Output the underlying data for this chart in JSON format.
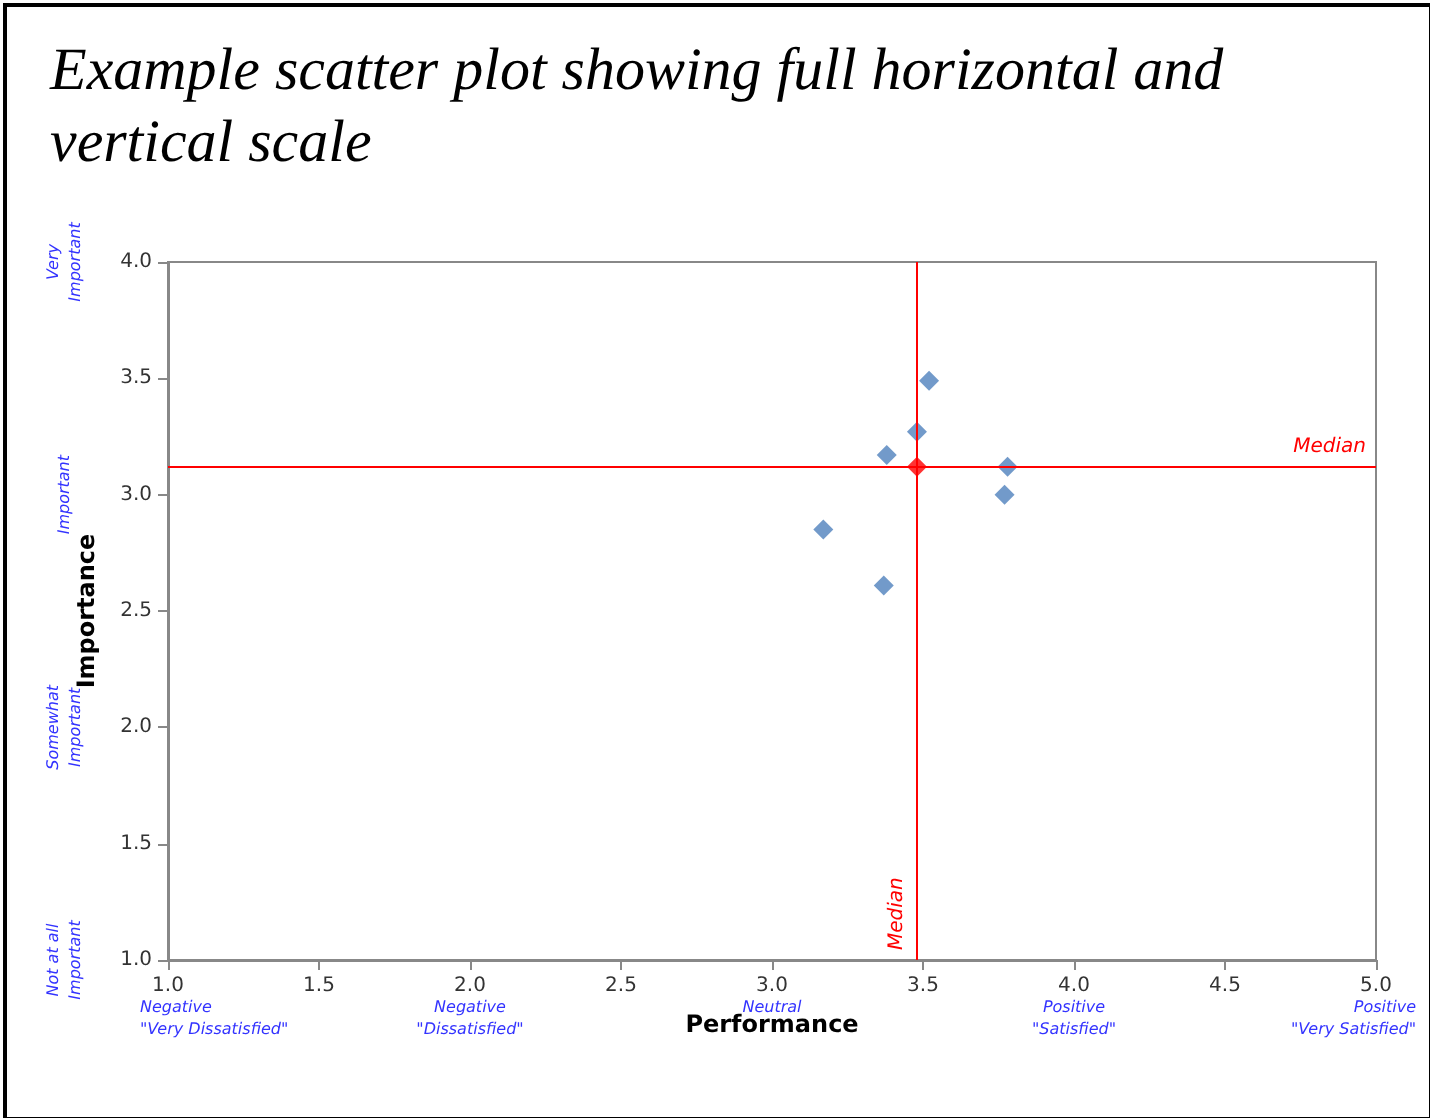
{
  "chart_data": {
    "type": "scatter",
    "title": "Example scatter plot showing full horizontal and vertical scale",
    "xlabel": "Performance",
    "ylabel": "Importance",
    "series": [
      {
        "color": "#4f81bd",
        "x": [
          3.52,
          3.48,
          3.38,
          3.78,
          3.77,
          3.17,
          3.37
        ],
        "values": [
          3.49,
          3.27,
          3.17,
          3.12,
          3.0,
          2.85,
          2.61
        ]
      },
      {
        "color": "#ff0000",
        "x": [
          3.48
        ],
        "values": [
          3.12
        ]
      }
    ],
    "marker": "diamond",
    "xlim": [
      1,
      5
    ],
    "ylim": [
      1,
      4
    ],
    "xticks": [
      {
        "value": 1,
        "label": "1.0"
      },
      1.5,
      {
        "value": 2,
        "label": "2.0"
      },
      2.5,
      {
        "value": 3,
        "label": "3.0"
      },
      3.5,
      {
        "value": 4,
        "label": "4.0"
      },
      4.5,
      {
        "value": 5,
        "label": "5.0"
      }
    ],
    "yticks": [
      {
        "value": 1,
        "label": "1.0"
      },
      1.5,
      {
        "value": 2,
        "label": "2.0"
      },
      2.5,
      {
        "value": 3,
        "label": "3.0"
      },
      3.5,
      {
        "value": 4,
        "label": "4.0"
      }
    ],
    "ref_lines": [
      {
        "axis": "x",
        "value": 3.48,
        "label": "Median",
        "color": "#ff0000"
      },
      {
        "axis": "y",
        "value": 3.12,
        "label": "Median",
        "color": "#ff0000"
      }
    ],
    "annotations": [
      "Negative\n\"Very Dissatisfied\"",
      "Negative\n\"Dissatisfied\"",
      "Neutral",
      "Positive\n\"Satisfied\"",
      "Positive\n\"Very Satisfied\"",
      "Very\nImportant",
      "Important",
      "Somewhat\nImportant",
      "Not at all\nImportant"
    ]
  }
}
